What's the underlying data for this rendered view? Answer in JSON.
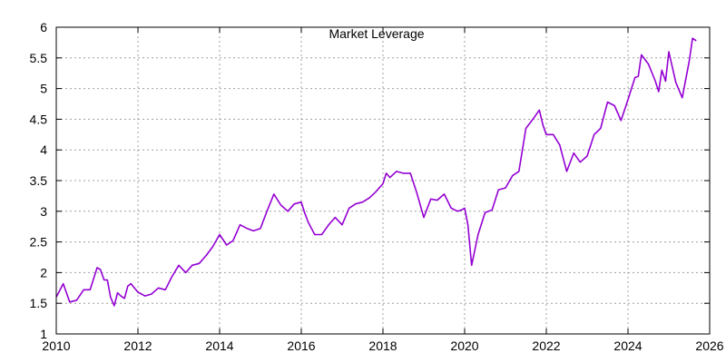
{
  "chart_data": {
    "type": "line",
    "title": "Market Leverage",
    "xlabel": "",
    "ylabel": "",
    "xlim": [
      2010,
      2026
    ],
    "ylim": [
      1,
      6
    ],
    "grid": true,
    "xticks": [
      "2010",
      "2012",
      "2014",
      "2016",
      "2018",
      "2020",
      "2022",
      "2024",
      "2026"
    ],
    "yticks": [
      "1",
      "1.5",
      "2",
      "2.5",
      "3",
      "3.5",
      "4",
      "4.5",
      "5",
      "5.5",
      "6"
    ],
    "series_color": "#9400d3",
    "series": [
      {
        "name": "",
        "x": [
          2010.0,
          2010.17,
          2010.33,
          2010.5,
          2010.67,
          2010.83,
          2011.0,
          2011.08,
          2011.17,
          2011.25,
          2011.33,
          2011.42,
          2011.5,
          2011.58,
          2011.67,
          2011.75,
          2011.83,
          2012.0,
          2012.17,
          2012.33,
          2012.5,
          2012.67,
          2012.83,
          2013.0,
          2013.17,
          2013.33,
          2013.5,
          2013.67,
          2013.83,
          2014.0,
          2014.17,
          2014.33,
          2014.5,
          2014.67,
          2014.83,
          2015.0,
          2015.17,
          2015.33,
          2015.5,
          2015.67,
          2015.83,
          2016.0,
          2016.08,
          2016.17,
          2016.33,
          2016.5,
          2016.67,
          2016.83,
          2017.0,
          2017.17,
          2017.33,
          2017.5,
          2017.67,
          2017.83,
          2018.0,
          2018.08,
          2018.17,
          2018.33,
          2018.5,
          2018.67,
          2018.83,
          2019.0,
          2019.17,
          2019.33,
          2019.5,
          2019.67,
          2019.83,
          2019.92,
          2020.0,
          2020.08,
          2020.17,
          2020.33,
          2020.5,
          2020.67,
          2020.83,
          2021.0,
          2021.17,
          2021.33,
          2021.5,
          2021.67,
          2021.83,
          2021.92,
          2022.0,
          2022.17,
          2022.33,
          2022.5,
          2022.67,
          2022.83,
          2023.0,
          2023.17,
          2023.33,
          2023.5,
          2023.67,
          2023.83,
          2024.0,
          2024.17,
          2024.25,
          2024.33,
          2024.5,
          2024.67,
          2024.75,
          2024.83,
          2024.92,
          2025.0,
          2025.17,
          2025.33,
          2025.5,
          2025.58,
          2025.67
        ],
        "y": [
          1.6,
          1.82,
          1.52,
          1.55,
          1.72,
          1.72,
          2.08,
          2.05,
          1.88,
          1.88,
          1.6,
          1.46,
          1.67,
          1.62,
          1.58,
          1.78,
          1.82,
          1.68,
          1.62,
          1.65,
          1.75,
          1.72,
          1.93,
          2.12,
          2.0,
          2.12,
          2.15,
          2.28,
          2.42,
          2.62,
          2.45,
          2.52,
          2.78,
          2.72,
          2.68,
          2.72,
          3.02,
          3.28,
          3.1,
          3.0,
          3.12,
          3.15,
          2.98,
          2.82,
          2.62,
          2.62,
          2.78,
          2.9,
          2.78,
          3.05,
          3.12,
          3.15,
          3.22,
          3.32,
          3.45,
          3.62,
          3.55,
          3.65,
          3.62,
          3.62,
          3.3,
          2.9,
          3.2,
          3.18,
          3.28,
          3.05,
          3.0,
          3.02,
          3.05,
          2.78,
          2.12,
          2.62,
          2.98,
          3.02,
          3.35,
          3.38,
          3.58,
          3.65,
          4.35,
          4.5,
          4.65,
          4.4,
          4.25,
          4.25,
          4.08,
          3.65,
          3.95,
          3.8,
          3.9,
          4.25,
          4.35,
          4.78,
          4.72,
          4.48,
          4.82,
          5.18,
          5.2,
          5.55,
          5.4,
          5.12,
          4.95,
          5.3,
          5.12,
          5.6,
          5.1,
          4.85,
          5.45,
          5.82,
          5.78
        ]
      }
    ]
  }
}
